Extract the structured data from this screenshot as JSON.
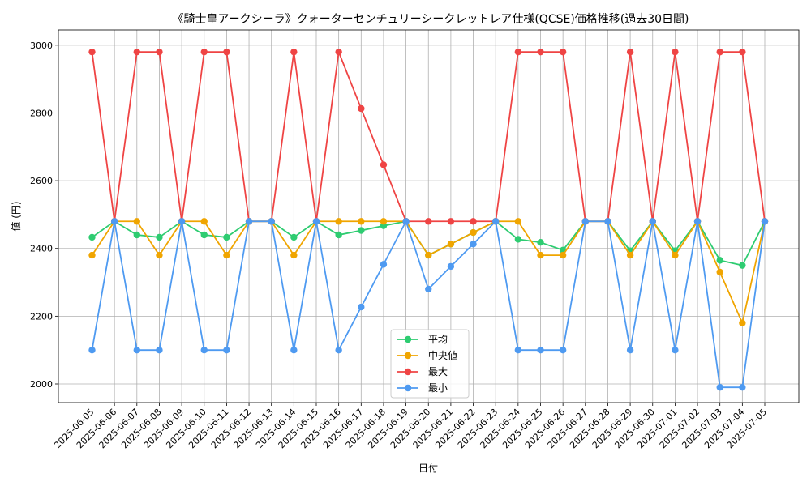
{
  "chart_data": {
    "type": "line",
    "title": "《騎士皇アークシーラ》クォーターセンチュリーシークレットレア仕様(QCSE)価格推移(過去30日間)",
    "xlabel": "日付",
    "ylabel": "値 (円)",
    "ylim": [
      1945,
      3045
    ],
    "yticks": [
      2000,
      2200,
      2400,
      2600,
      2800,
      3000
    ],
    "grid": true,
    "legend_position": "lower-center",
    "categories": [
      "2025-06-05",
      "2025-06-06",
      "2025-06-07",
      "2025-06-08",
      "2025-06-09",
      "2025-06-10",
      "2025-06-11",
      "2025-06-12",
      "2025-06-13",
      "2025-06-14",
      "2025-06-15",
      "2025-06-16",
      "2025-06-17",
      "2025-06-18",
      "2025-06-19",
      "2025-06-20",
      "2025-06-21",
      "2025-06-22",
      "2025-06-23",
      "2025-06-24",
      "2025-06-25",
      "2025-06-26",
      "2025-06-27",
      "2025-06-28",
      "2025-06-29",
      "2025-06-30",
      "2025-07-01",
      "2025-07-02",
      "2025-07-03",
      "2025-07-04",
      "2025-07-05"
    ],
    "series": [
      {
        "name": "平均",
        "color": "#2ecc71",
        "values": [
          2433,
          2480,
          2440,
          2433,
          2480,
          2440,
          2433,
          2480,
          2480,
          2433,
          2480,
          2440,
          2453,
          2467,
          2480,
          2380,
          2413,
          2447,
          2480,
          2427,
          2418,
          2395,
          2480,
          2480,
          2393,
          2480,
          2393,
          2480,
          2365,
          2350,
          2480
        ]
      },
      {
        "name": "中央値",
        "color": "#f0a500",
        "values": [
          2380,
          2480,
          2480,
          2380,
          2480,
          2480,
          2380,
          2480,
          2480,
          2380,
          2480,
          2480,
          2480,
          2480,
          2480,
          2380,
          2413,
          2447,
          2480,
          2480,
          2380,
          2380,
          2480,
          2480,
          2380,
          2480,
          2380,
          2480,
          2330,
          2180,
          2480
        ]
      },
      {
        "name": "最大",
        "color": "#ef4444",
        "values": [
          2980,
          2480,
          2980,
          2980,
          2480,
          2980,
          2980,
          2480,
          2480,
          2980,
          2480,
          2980,
          2813,
          2647,
          2480,
          2480,
          2480,
          2480,
          2480,
          2980,
          2980,
          2980,
          2480,
          2480,
          2980,
          2480,
          2980,
          2480,
          2980,
          2980,
          2480
        ]
      },
      {
        "name": "最小",
        "color": "#4e9af1",
        "values": [
          2100,
          2480,
          2100,
          2100,
          2480,
          2100,
          2100,
          2480,
          2480,
          2100,
          2480,
          2100,
          2227,
          2353,
          2480,
          2280,
          2347,
          2413,
          2480,
          2100,
          2100,
          2100,
          2480,
          2480,
          2100,
          2480,
          2100,
          2480,
          1990,
          1990,
          2480
        ]
      }
    ]
  }
}
